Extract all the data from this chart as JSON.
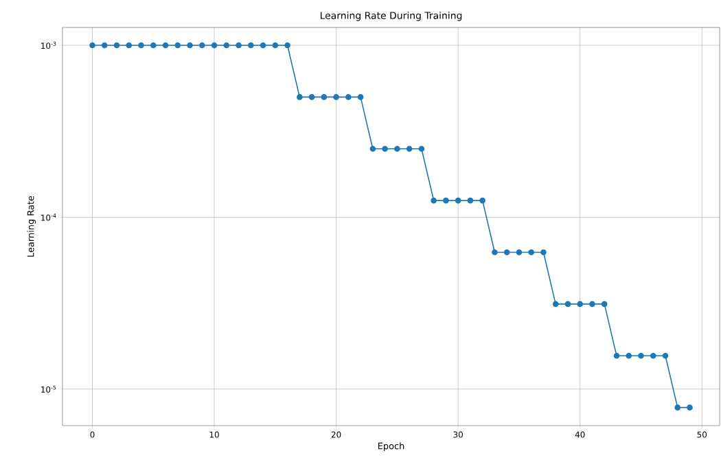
{
  "chart_data": {
    "type": "line",
    "title": "Learning Rate During Training",
    "xlabel": "Epoch",
    "ylabel": "Learning Rate",
    "x": [
      0,
      1,
      2,
      3,
      4,
      5,
      6,
      7,
      8,
      9,
      10,
      11,
      12,
      13,
      14,
      15,
      16,
      17,
      18,
      19,
      20,
      21,
      22,
      23,
      24,
      25,
      26,
      27,
      28,
      29,
      30,
      31,
      32,
      33,
      34,
      35,
      36,
      37,
      38,
      39,
      40,
      41,
      42,
      43,
      44,
      45,
      46,
      47,
      48,
      49
    ],
    "series": [
      {
        "color": "#1f77b4",
        "values": [
          0.001,
          0.001,
          0.001,
          0.001,
          0.001,
          0.001,
          0.001,
          0.001,
          0.001,
          0.001,
          0.001,
          0.001,
          0.001,
          0.001,
          0.001,
          0.001,
          0.001,
          0.0005,
          0.0005,
          0.0005,
          0.0005,
          0.0005,
          0.0005,
          0.00025,
          0.00025,
          0.00025,
          0.00025,
          0.00025,
          0.000125,
          0.000125,
          0.000125,
          0.000125,
          0.000125,
          6.25e-05,
          6.25e-05,
          6.25e-05,
          6.25e-05,
          6.25e-05,
          3.125e-05,
          3.125e-05,
          3.125e-05,
          3.125e-05,
          3.125e-05,
          1.5625e-05,
          1.5625e-05,
          1.5625e-05,
          1.5625e-05,
          1.5625e-05,
          7.8125e-06,
          7.8125e-06
        ]
      }
    ],
    "log": "y",
    "xlim": [
      -2.45,
      51.45
    ],
    "ylim": [
      6.13e-06,
      0.00127
    ],
    "xticks": [
      0,
      10,
      20,
      30,
      40,
      50
    ],
    "yticks": [
      {
        "value": 1e-05,
        "label": "10$^{-5}$"
      },
      {
        "value": 0.0001,
        "label": "10$^{-4}$"
      },
      {
        "value": 0.001,
        "label": "10$^{-3}$"
      }
    ],
    "grid": true,
    "marker": "circle",
    "line_style": "solid"
  }
}
